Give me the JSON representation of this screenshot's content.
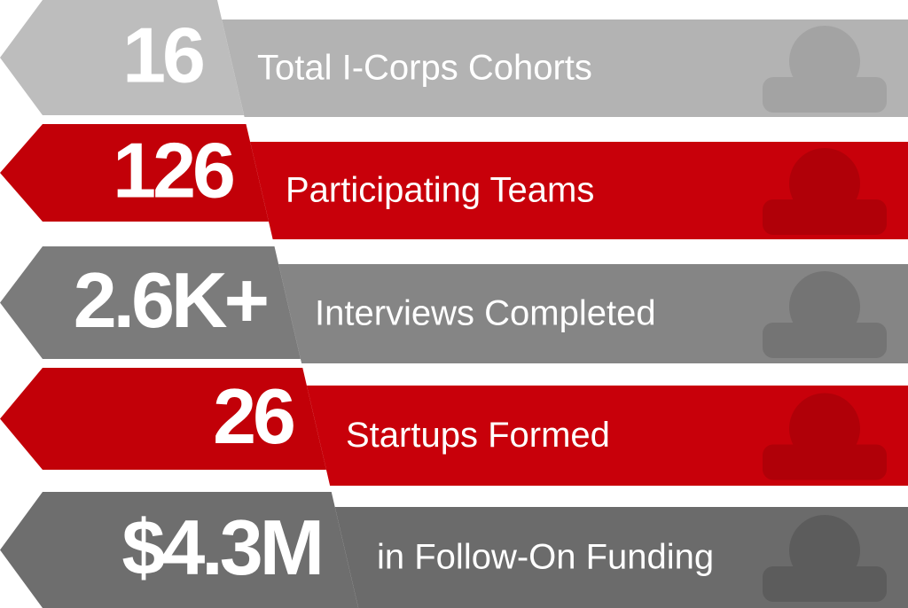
{
  "rows": [
    {
      "value": "16",
      "label": "Total I-Corps Cohorts"
    },
    {
      "value": "126",
      "label": "Participating Teams"
    },
    {
      "value": "2.6K+",
      "label": "Interviews Completed"
    },
    {
      "value": "26",
      "label": "Startups Formed"
    },
    {
      "value": "$4.3M",
      "label": "in Follow-On Funding"
    }
  ]
}
